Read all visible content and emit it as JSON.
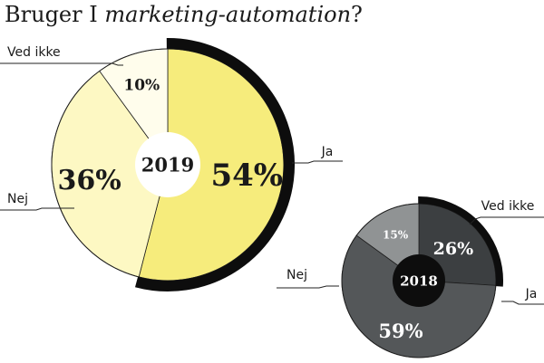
{
  "title": {
    "prefix": "Bruger I ",
    "emphasis": "marketing-automation",
    "suffix": "?"
  },
  "chart_data": [
    {
      "type": "pie",
      "center_label": "2019",
      "categories": [
        "Ja",
        "Nej",
        "Ved ikke"
      ],
      "values": [
        54,
        36,
        10
      ],
      "value_labels": [
        "54%",
        "36%",
        "10%"
      ],
      "colors": [
        "#f6ec7c",
        "#fdf8c3",
        "#fffdec"
      ],
      "highlight": "Ja"
    },
    {
      "type": "pie",
      "center_label": "2018",
      "categories": [
        "Ja",
        "Nej",
        "Ved ikke"
      ],
      "values": [
        26,
        59,
        15
      ],
      "value_labels": [
        "26%",
        "59%",
        "15%"
      ],
      "colors": [
        "#3c3f41",
        "#545759",
        "#909394"
      ],
      "highlight": "Ja"
    }
  ]
}
